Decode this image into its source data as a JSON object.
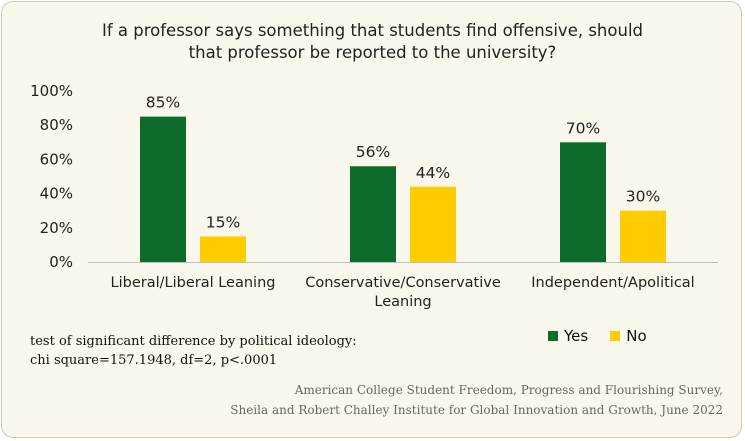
{
  "chart_data": {
    "type": "bar",
    "title_lines": [
      "If a professor says something that students find offensive, should",
      "that professor be reported to the university?"
    ],
    "categories": [
      [
        "Liberal/Liberal Leaning"
      ],
      [
        "Conservative/Conservative",
        "Leaning"
      ],
      [
        "Independent/Apolitical"
      ]
    ],
    "series": [
      {
        "name": "Yes",
        "values": [
          85,
          56,
          70
        ],
        "color": "#0d6b2c"
      },
      {
        "name": "No",
        "values": [
          15,
          44,
          30
        ],
        "color": "#ffcc00"
      }
    ],
    "data_labels": [
      [
        "85%",
        "56%",
        "70%"
      ],
      [
        "15%",
        "44%",
        "30%"
      ]
    ],
    "ylim": [
      0,
      100
    ],
    "yticks": [
      0,
      20,
      40,
      60,
      80,
      100
    ],
    "ytick_labels": [
      "0%",
      "20%",
      "40%",
      "60%",
      "80%",
      "100%"
    ],
    "legend": "bottom-right",
    "grid": false
  },
  "note_lines": [
    "test of significant difference by political ideology:",
    "chi square=157.1948, df=2, p<.0001"
  ],
  "source_lines": [
    "American College Student Freedom, Progress and Flourishing Survey,",
    "Sheila and Robert Challey Institute for Global Innovation and Growth, June 2022"
  ]
}
